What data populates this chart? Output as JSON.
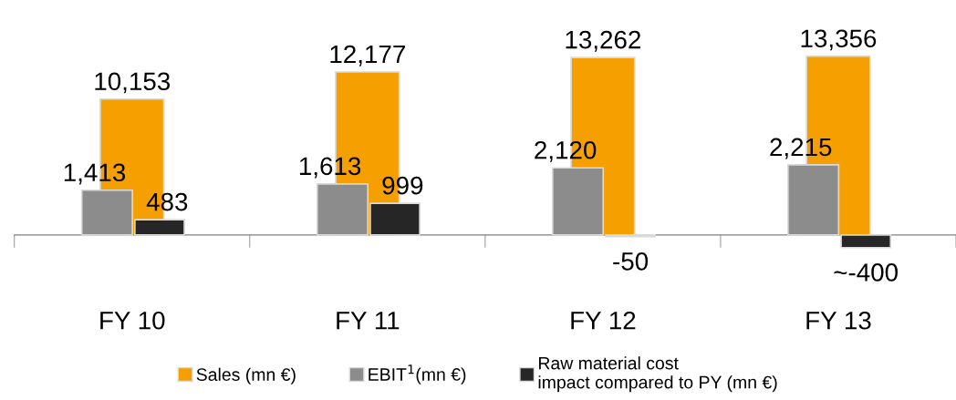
{
  "chart_data": {
    "type": "bar",
    "categories": [
      "FY 10",
      "FY 11",
      "FY 12",
      "FY 13"
    ],
    "series": [
      {
        "name": "Sales (mn €)",
        "color": "#f5a000",
        "values": [
          10153,
          12177,
          13262,
          13356
        ],
        "value_labels": [
          "10,153",
          "12,177",
          "13,262",
          "13,356"
        ]
      },
      {
        "name": "EBIT$^{1}$(mn €)",
        "color": "#8c8c8c",
        "axis": "y2",
        "values": [
          1413,
          1613,
          2120,
          2215
        ],
        "value_labels": [
          "1,413",
          "1,613",
          "2,120",
          "2,215"
        ]
      },
      {
        "name": "Raw material cost\nimpact compared to PY (mn €)",
        "color": "#262626",
        "axis": "y2",
        "values": [
          483,
          999,
          -50,
          -400
        ],
        "value_labels": [
          "483",
          "999",
          "-50",
          "~-400"
        ]
      }
    ],
    "legend": "bottom",
    "tick_labels": "x",
    "grid": false
  }
}
